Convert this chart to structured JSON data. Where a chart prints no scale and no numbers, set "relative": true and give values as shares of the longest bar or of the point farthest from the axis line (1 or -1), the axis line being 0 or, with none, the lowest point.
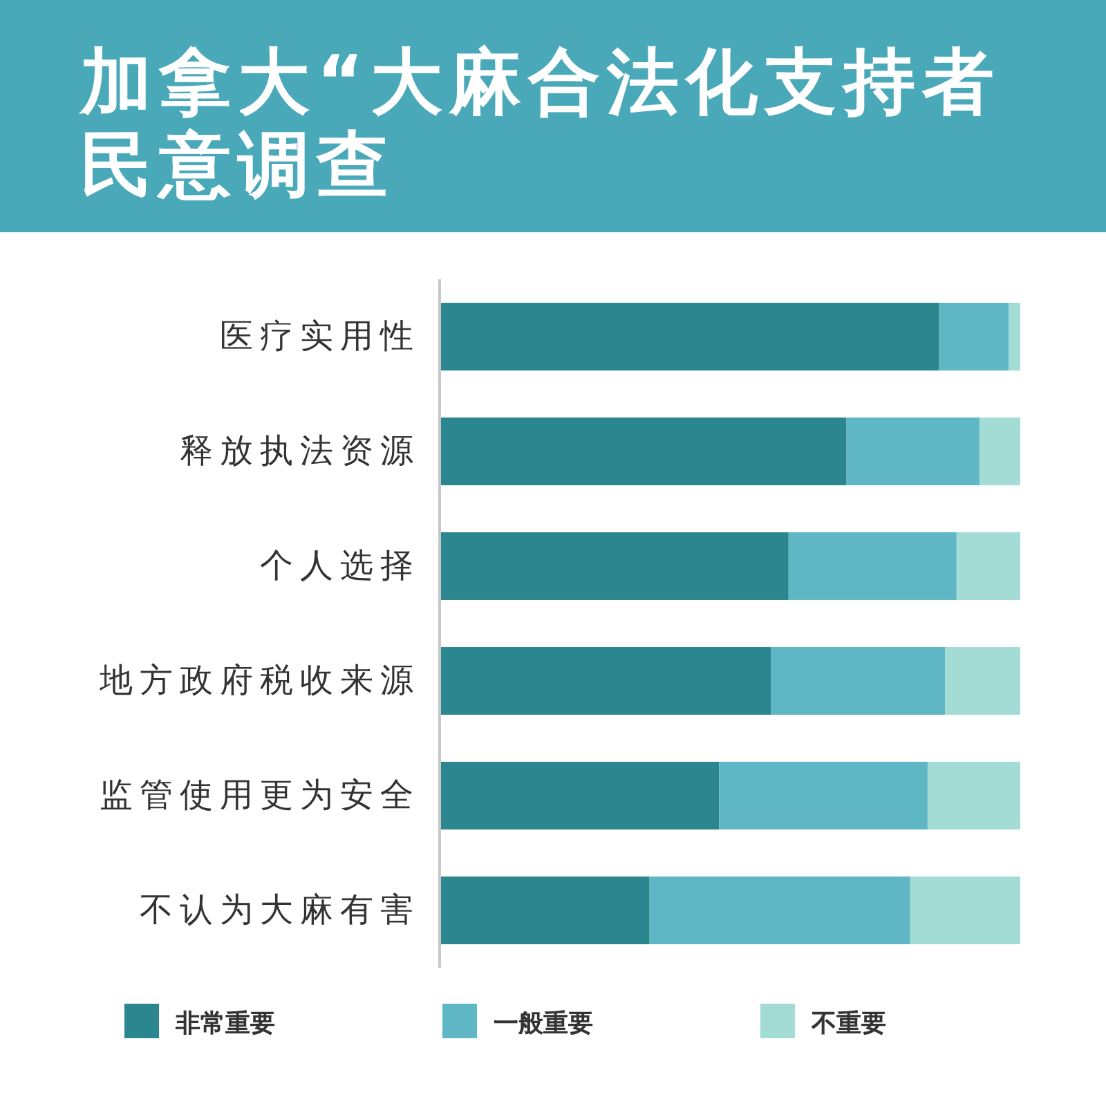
{
  "chart_data": {
    "type": "bar",
    "title": "加拿大“大麻合法化支持者民意调查",
    "categories": [
      "医疗实用性",
      "释放执法资源",
      "个人选择",
      "地方政府税收来源",
      "监管使用更为安全",
      "不认为大麻有害"
    ],
    "orientation": "horizontal",
    "stacked": true,
    "relative": true,
    "series": [
      {
        "name": "非常重要",
        "color": "#2b8690",
        "values": [
          0.86,
          0.7,
          0.6,
          0.57,
          0.48,
          0.36
        ]
      },
      {
        "name": "一般重要",
        "color": "#5fb7c6",
        "values": [
          0.12,
          0.23,
          0.29,
          0.3,
          0.36,
          0.45
        ]
      },
      {
        "name": "不重要",
        "color": "#a3dbd5",
        "values": [
          0.02,
          0.07,
          0.11,
          0.13,
          0.16,
          0.19
        ]
      }
    ],
    "legend": "bottom"
  }
}
